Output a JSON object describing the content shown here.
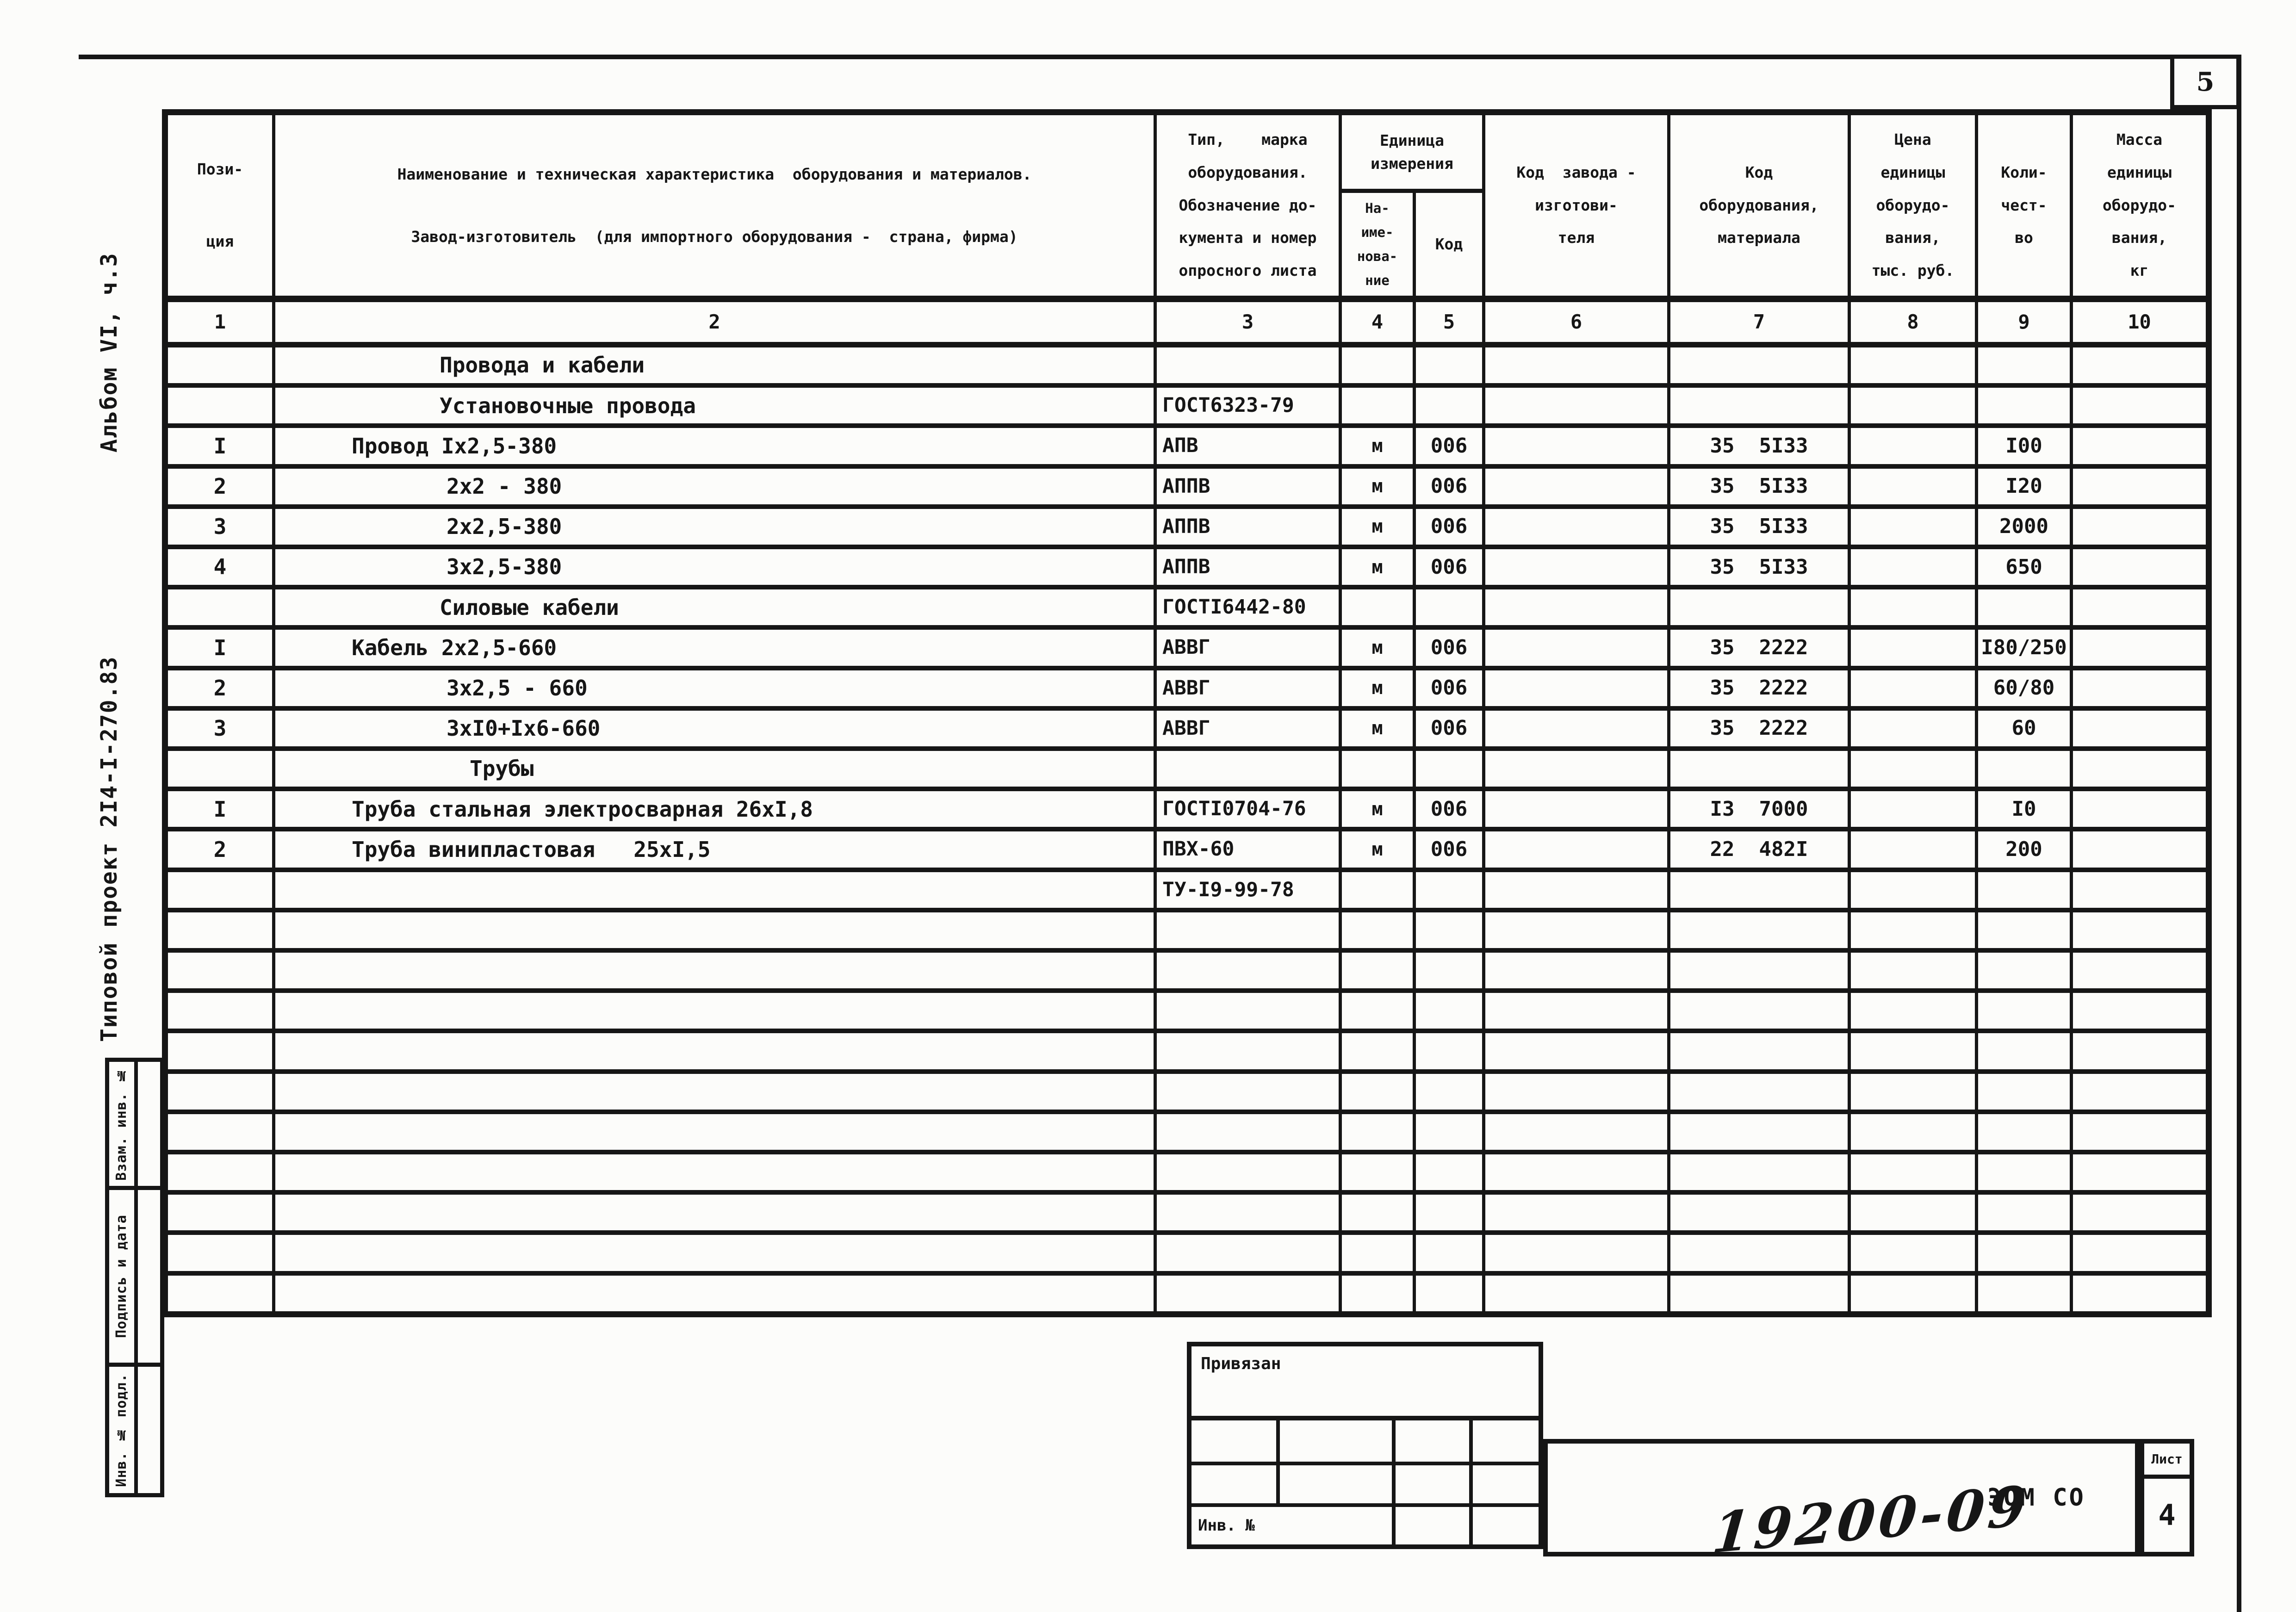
{
  "page": {
    "sheet_corner_number": "5",
    "sheet_label": "Лист",
    "sheet_number": "4",
    "doc_code": "ЭОМ СО",
    "handwritten_note": "19200-09"
  },
  "sidebar": {
    "album": "Альбом VI, ч.3",
    "project": "Типовой проект 2I4-I-270.83",
    "stamp_labels": [
      "Взам. инв. №",
      "Подпись и дата",
      "Инв. № подл."
    ]
  },
  "corner_stamp": {
    "title": "Привязан",
    "inv_label": "Инв. №"
  },
  "table": {
    "header": {
      "col1": [
        "Пози-",
        "ция"
      ],
      "col2": [
        "Наименование и техническая характеристика  оборудования и материалов.",
        "Завод-изготовитель  (для импортного оборудования -  страна, фирма)"
      ],
      "col3": [
        "Тип,    марка",
        "оборудования.",
        "Обозначение до-",
        "кумента и номер",
        "опросного листа"
      ],
      "unit_group": [
        "Единица",
        "измерения"
      ],
      "col4": [
        "На-",
        "име-",
        "нова-",
        "ние"
      ],
      "col5": "Код",
      "col6": [
        "Код  завода -",
        "изготови-",
        "теля"
      ],
      "col7": [
        "Код",
        "оборудования,",
        "материала"
      ],
      "col8": [
        "Цена",
        "единицы",
        "оборудо-",
        "вания,",
        "тыс. руб."
      ],
      "col9": [
        "Коли-",
        "чест-",
        "во"
      ],
      "col10": [
        "Масса",
        "единицы",
        "оборудо-",
        "вания,",
        "кг"
      ],
      "numbers": [
        "1",
        "2",
        "3",
        "4",
        "5",
        "6",
        "7",
        "8",
        "9",
        "10"
      ]
    },
    "rows": [
      {
        "indent": 1,
        "cells": [
          "",
          "Провода и кабели",
          "",
          "",
          "",
          "",
          "",
          "",
          "",
          ""
        ]
      },
      {
        "indent": 1,
        "cells": [
          "",
          "Установочные провода",
          "ГОСТ6323-79",
          "",
          "",
          "",
          "",
          "",
          "",
          ""
        ]
      },
      {
        "indent": 0,
        "cells": [
          "I",
          "Провод Iх2,5-380",
          "АПВ",
          "м",
          "006",
          "",
          "35  5I33",
          "",
          "I00",
          ""
        ]
      },
      {
        "indent": 2,
        "cells": [
          "2",
          "2х2 - 380",
          "АППВ",
          "м",
          "006",
          "",
          "35  5I33",
          "",
          "I20",
          ""
        ]
      },
      {
        "indent": 2,
        "cells": [
          "3",
          "2х2,5-380",
          "АППВ",
          "м",
          "006",
          "",
          "35  5I33",
          "",
          "2000",
          ""
        ]
      },
      {
        "indent": 2,
        "cells": [
          "4",
          "3х2,5-380",
          "АППВ",
          "м",
          "006",
          "",
          "35  5I33",
          "",
          "650",
          ""
        ]
      },
      {
        "indent": 1,
        "cells": [
          "",
          "Силовые кабели",
          "ГОСТI6442-80",
          "",
          "",
          "",
          "",
          "",
          "",
          ""
        ]
      },
      {
        "indent": 0,
        "cells": [
          "I",
          "Кабель 2х2,5-660",
          "АВВГ",
          "м",
          "006",
          "",
          "35  2222",
          "",
          "I80/250",
          ""
        ]
      },
      {
        "indent": 2,
        "cells": [
          "2",
          "3х2,5 - 660",
          "АВВГ",
          "м",
          "006",
          "",
          "35  2222",
          "",
          "60/80",
          ""
        ]
      },
      {
        "indent": 2,
        "cells": [
          "3",
          "3хI0+Iх6-660",
          "АВВГ",
          "м",
          "006",
          "",
          "35  2222",
          "",
          "60",
          ""
        ]
      },
      {
        "indent": 3,
        "cells": [
          "",
          "Трубы",
          "",
          "",
          "",
          "",
          "",
          "",
          "",
          ""
        ]
      },
      {
        "indent": 0,
        "cells": [
          "I",
          "Труба стальная электросварная 26хI,8",
          "ГОСТI0704-76",
          "м",
          "006",
          "",
          "I3  7000",
          "",
          "I0",
          ""
        ]
      },
      {
        "indent": 0,
        "cells": [
          "2",
          "Труба винипластовая   25хI,5",
          "ПВХ-60",
          "м",
          "006",
          "",
          "22  482I",
          "",
          "200",
          ""
        ]
      },
      {
        "indent": 0,
        "cells": [
          "",
          "",
          "ТУ-I9-99-78",
          "",
          "",
          "",
          "",
          "",
          "",
          ""
        ]
      },
      {
        "indent": 0,
        "cells": [
          "",
          "",
          "",
          "",
          "",
          "",
          "",
          "",
          "",
          ""
        ]
      },
      {
        "indent": 0,
        "cells": [
          "",
          "",
          "",
          "",
          "",
          "",
          "",
          "",
          "",
          ""
        ]
      },
      {
        "indent": 0,
        "cells": [
          "",
          "",
          "",
          "",
          "",
          "",
          "",
          "",
          "",
          ""
        ]
      },
      {
        "indent": 0,
        "cells": [
          "",
          "",
          "",
          "",
          "",
          "",
          "",
          "",
          "",
          ""
        ]
      },
      {
        "indent": 0,
        "cells": [
          "",
          "",
          "",
          "",
          "",
          "",
          "",
          "",
          "",
          ""
        ]
      },
      {
        "indent": 0,
        "cells": [
          "",
          "",
          "",
          "",
          "",
          "",
          "",
          "",
          "",
          ""
        ]
      },
      {
        "indent": 0,
        "cells": [
          "",
          "",
          "",
          "",
          "",
          "",
          "",
          "",
          "",
          ""
        ]
      },
      {
        "indent": 0,
        "cells": [
          "",
          "",
          "",
          "",
          "",
          "",
          "",
          "",
          "",
          ""
        ]
      },
      {
        "indent": 0,
        "cells": [
          "",
          "",
          "",
          "",
          "",
          "",
          "",
          "",
          "",
          ""
        ]
      },
      {
        "indent": 0,
        "cells": [
          "",
          "",
          "",
          "",
          "",
          "",
          "",
          "",
          "",
          ""
        ]
      }
    ]
  }
}
